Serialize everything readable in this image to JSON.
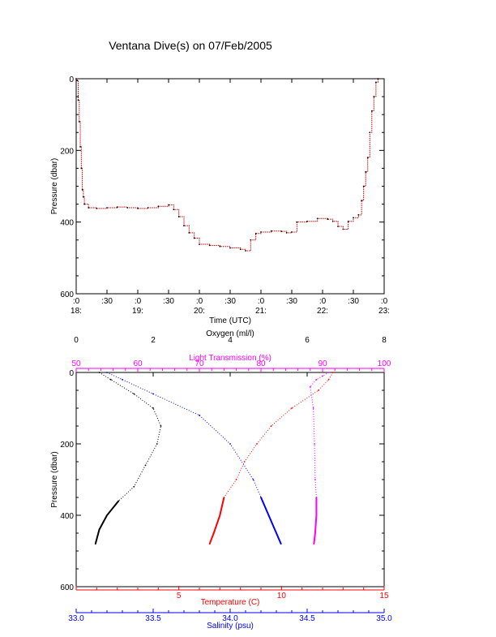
{
  "title": "Ventana Dive(s) on 07/Feb/2005",
  "colors": {
    "axis": "#000000",
    "depth_trace": "#cc0000",
    "oxygen": "#000000",
    "light": "#ff00ff",
    "temperature": "#ff0000",
    "salinity": "#0000ff"
  },
  "chart_data": [
    {
      "type": "line",
      "title": "Ventana Dive(s) on 07/Feb/2005",
      "xlabel": "Time (UTC)",
      "ylabel": "Pressure (dbar)",
      "ylim": [
        600,
        0
      ],
      "xlim": [
        "18:00",
        "23:00"
      ],
      "x_tick_labels": [
        {
          "time": "18:00",
          "top": ":0",
          "bottom": "18:"
        },
        {
          "time": "18:30",
          "top": ":30",
          "bottom": ""
        },
        {
          "time": "19:00",
          "top": ":0",
          "bottom": "19:"
        },
        {
          "time": "19:30",
          "top": ":30",
          "bottom": ""
        },
        {
          "time": "20:00",
          "top": ":0",
          "bottom": "20:"
        },
        {
          "time": "20:30",
          "top": ":30",
          "bottom": ""
        },
        {
          "time": "21:00",
          "top": ":0",
          "bottom": "21:"
        },
        {
          "time": "21:30",
          "top": ":30",
          "bottom": ""
        },
        {
          "time": "22:00",
          "top": ":0",
          "bottom": "22:"
        },
        {
          "time": "22:30",
          "top": ":30",
          "bottom": ""
        },
        {
          "time": "23:00",
          "top": ":0",
          "bottom": "23:"
        }
      ],
      "y_ticks": [
        0,
        200,
        400,
        600
      ],
      "grid": false,
      "series": [
        {
          "points": [
            [
              "18:00",
              0
            ],
            [
              "18:01",
              5
            ],
            [
              "18:02",
              60
            ],
            [
              "18:03",
              120
            ],
            [
              "18:04",
              190
            ],
            [
              "18:05",
              250
            ],
            [
              "18:06",
              310
            ],
            [
              "18:07",
              330
            ],
            [
              "18:08",
              350
            ],
            [
              "18:12",
              360
            ],
            [
              "18:20",
              362
            ],
            [
              "18:30",
              360
            ],
            [
              "18:40",
              358
            ],
            [
              "18:50",
              360
            ],
            [
              "19:00",
              362
            ],
            [
              "19:10",
              360
            ],
            [
              "19:20",
              356
            ],
            [
              "19:30",
              352
            ],
            [
              "19:35",
              365
            ],
            [
              "19:40",
              385
            ],
            [
              "19:45",
              410
            ],
            [
              "19:50",
              430
            ],
            [
              "19:55",
              445
            ],
            [
              "20:00",
              462
            ],
            [
              "20:10",
              465
            ],
            [
              "20:20",
              468
            ],
            [
              "20:30",
              472
            ],
            [
              "20:40",
              476
            ],
            [
              "20:45",
              480
            ],
            [
              "20:50",
              450
            ],
            [
              "20:55",
              432
            ],
            [
              "21:00",
              428
            ],
            [
              "21:10",
              425
            ],
            [
              "21:20",
              426
            ],
            [
              "21:25",
              430
            ],
            [
              "21:30",
              428
            ],
            [
              "21:35",
              400
            ],
            [
              "21:45",
              398
            ],
            [
              "21:55",
              390
            ],
            [
              "22:05",
              392
            ],
            [
              "22:10",
              398
            ],
            [
              "22:15",
              412
            ],
            [
              "22:20",
              420
            ],
            [
              "22:25",
              398
            ],
            [
              "22:30",
              388
            ],
            [
              "22:35",
              380
            ],
            [
              "22:38",
              340
            ],
            [
              "22:40",
              300
            ],
            [
              "22:42",
              260
            ],
            [
              "22:44",
              220
            ],
            [
              "22:46",
              150
            ],
            [
              "22:48",
              90
            ],
            [
              "22:50",
              50
            ],
            [
              "22:52",
              10
            ],
            [
              "22:54",
              0
            ]
          ]
        }
      ]
    },
    {
      "type": "scatter",
      "ylabel": "Pressure (dbar)",
      "ylim": [
        600,
        0
      ],
      "y_ticks": [
        0,
        200,
        400,
        600
      ],
      "axes": [
        {
          "label": "Oxygen (ml/l)",
          "position": "top",
          "range": [
            0,
            8
          ],
          "ticks": [
            0,
            2,
            4,
            6,
            8
          ]
        },
        {
          "label": "Light Transmission (%)",
          "position": "top",
          "range": [
            50,
            100
          ],
          "ticks": [
            50,
            60,
            70,
            80,
            90,
            100
          ]
        },
        {
          "label": "Temperature (C)",
          "position": "bottom",
          "range": [
            0,
            15
          ],
          "ticks": [
            5,
            10,
            15
          ]
        },
        {
          "label": "Salinity (psu)",
          "position": "bottom",
          "range": [
            33.0,
            35.0
          ],
          "ticks": [
            "33.0",
            "33.5",
            "34.0",
            "34.5",
            "35.0"
          ]
        }
      ],
      "series": [
        {
          "axis": "Oxygen (ml/l)",
          "points": [
            [
              0.6,
              0
            ],
            [
              0.9,
              20
            ],
            [
              1.5,
              60
            ],
            [
              2.0,
              100
            ],
            [
              2.2,
              150
            ],
            [
              2.1,
              200
            ],
            [
              1.8,
              260
            ],
            [
              1.5,
              320
            ],
            [
              1.1,
              360
            ],
            [
              0.8,
              400
            ],
            [
              0.6,
              440
            ],
            [
              0.5,
              480
            ]
          ]
        },
        {
          "axis": "Light Transmission (%)",
          "points": [
            [
              91,
              0
            ],
            [
              90,
              10
            ],
            [
              89,
              20
            ],
            [
              88,
              40
            ],
            [
              88.5,
              100
            ],
            [
              88.7,
              200
            ],
            [
              88.8,
              300
            ],
            [
              89,
              350
            ],
            [
              89,
              400
            ],
            [
              88.8,
              450
            ],
            [
              88.6,
              480
            ]
          ]
        },
        {
          "axis": "Temperature (C)",
          "points": [
            [
              12.5,
              0
            ],
            [
              12.3,
              20
            ],
            [
              11.8,
              50
            ],
            [
              10.5,
              100
            ],
            [
              9.5,
              150
            ],
            [
              8.8,
              200
            ],
            [
              8.2,
              250
            ],
            [
              7.8,
              300
            ],
            [
              7.2,
              350
            ],
            [
              7.0,
              400
            ],
            [
              6.7,
              450
            ],
            [
              6.5,
              480
            ]
          ]
        },
        {
          "axis": "Salinity (psu)",
          "points": [
            [
              33.2,
              0
            ],
            [
              33.3,
              20
            ],
            [
              33.5,
              60
            ],
            [
              33.8,
              120
            ],
            [
              34.0,
              200
            ],
            [
              34.15,
              300
            ],
            [
              34.2,
              350
            ],
            [
              34.25,
              400
            ],
            [
              34.3,
              450
            ],
            [
              34.33,
              480
            ]
          ]
        }
      ]
    }
  ]
}
